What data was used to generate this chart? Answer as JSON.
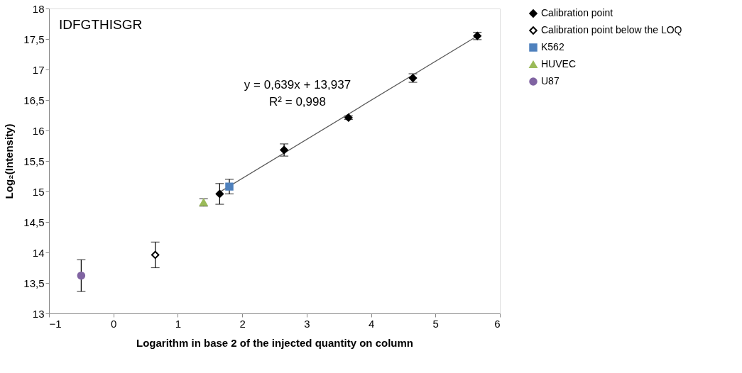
{
  "chart_data": {
    "type": "scatter",
    "title": "IDFGTHISGR",
    "xlabel": "Logarithm in base 2 of the injected quantity on column",
    "ylabel": "Log₂(Intensity)",
    "annotations": [
      "y = 0,639x + 13,937",
      "R² = 0,998"
    ],
    "xlim": [
      -1,
      6
    ],
    "xticks": [
      -1,
      0,
      1,
      2,
      3,
      4,
      5,
      6
    ],
    "ylim": [
      13,
      18
    ],
    "yticks": [
      13,
      {
        "value": 13.5,
        "label": "13,5"
      },
      14,
      {
        "value": 14.5,
        "label": "14,5"
      },
      15,
      {
        "value": 15.5,
        "label": "15,5"
      },
      16,
      {
        "value": 16.5,
        "label": "16,5"
      },
      17,
      {
        "value": 17.5,
        "label": "17,5"
      },
      18
    ],
    "grid": false,
    "legend": "right",
    "series": [
      {
        "type": "line",
        "color": "#595959",
        "x": [
          1.65,
          5.65
        ],
        "values": [
          14.99,
          17.55
        ]
      },
      {
        "name": "Calibration point",
        "color": "#000000",
        "marker": "diamond",
        "x": [
          1.65,
          2.65,
          3.65,
          4.65,
          5.65
        ],
        "values": [
          14.96,
          15.68,
          16.21,
          16.86,
          17.55
        ],
        "errors": [
          0.17,
          0.1,
          0.03,
          0.07,
          0.06
        ]
      },
      {
        "name": "Calibration point below the LOQ",
        "color": "#ffffff",
        "marker": "diamond",
        "x": [
          0.65
        ],
        "values": [
          13.96
        ],
        "errors": [
          0.21
        ]
      },
      {
        "name": "K562",
        "color": "#4f81bd",
        "marker": "square",
        "x": [
          1.8
        ],
        "values": [
          15.08
        ],
        "errors": [
          0.12
        ]
      },
      {
        "name": "HUVEC",
        "color": "#9bbb59",
        "marker": "triangle",
        "x": [
          1.4
        ],
        "values": [
          14.82
        ],
        "errors": [
          0.06
        ]
      },
      {
        "name": "U87",
        "color": "#8064a2",
        "marker": "circle",
        "x": [
          -0.5
        ],
        "values": [
          13.62
        ],
        "errors": [
          0.26
        ]
      }
    ]
  }
}
